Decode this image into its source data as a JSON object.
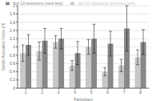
{
  "chart_data": {
    "type": "bar",
    "xlabel": "Participant",
    "ylabel": "Switch Activation Force (N)",
    "categories": [
      "1",
      "2",
      "3",
      "4",
      "5",
      "6",
      "7",
      "8"
    ],
    "series": [
      {
        "name": "last 10 selections (previous test)",
        "color": "#c8c8c8",
        "values": [
          0.85,
          0.9,
          1.12,
          0.55,
          1.0,
          0.4,
          0.55,
          0.75
        ],
        "errors": [
          0.2,
          0.22,
          0.15,
          0.12,
          0.18,
          0.1,
          0.15,
          0.18
        ]
      },
      {
        "name": "first 10 selections (next test)",
        "color": "#888888",
        "values": [
          1.05,
          1.15,
          1.2,
          0.85,
          1.2,
          1.08,
          1.45,
          1.12
        ],
        "errors": [
          0.25,
          0.3,
          0.25,
          0.28,
          0.35,
          0.3,
          0.55,
          0.3
        ]
      }
    ],
    "ylim": [
      0,
      2.0
    ],
    "yticks": [
      0,
      0.2,
      0.4,
      0.6,
      0.8,
      1.0,
      1.2,
      1.4,
      1.6,
      1.8,
      2.0
    ],
    "grid": true,
    "legend": "top"
  }
}
